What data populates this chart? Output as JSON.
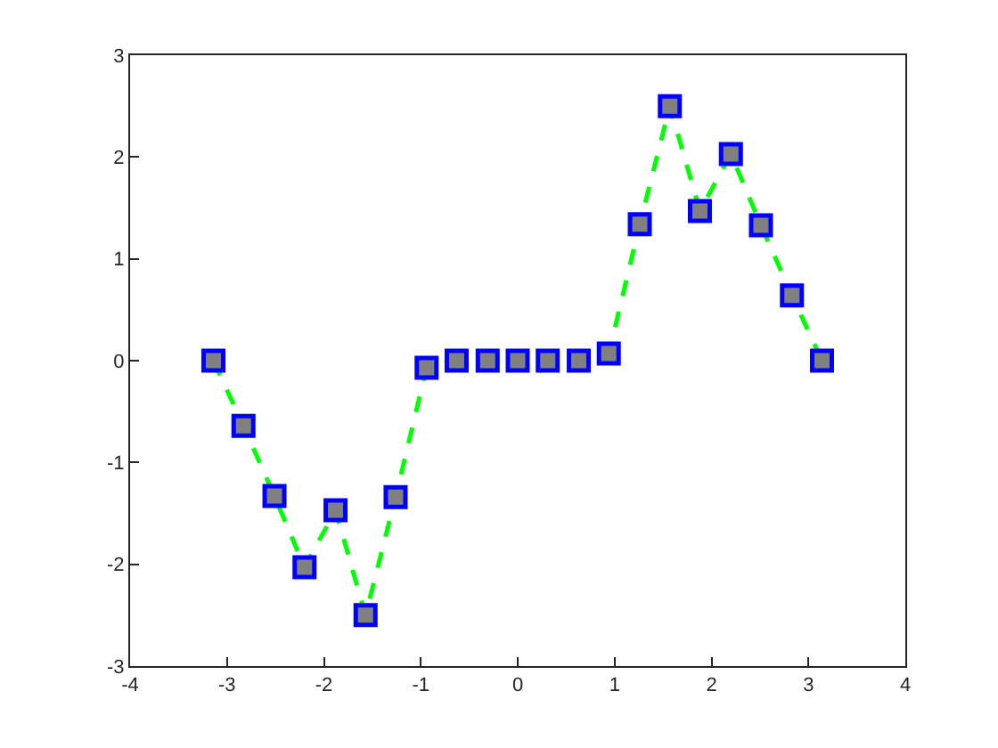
{
  "chart_data": {
    "type": "line",
    "x": [
      -3.14,
      -2.83,
      -2.51,
      -2.2,
      -1.88,
      -1.57,
      -1.26,
      -0.94,
      -0.63,
      -0.31,
      0,
      0.31,
      0.63,
      0.94,
      1.26,
      1.57,
      1.88,
      2.2,
      2.51,
      2.83,
      3.14
    ],
    "series": [
      {
        "color": "#00ff00",
        "values": [
          0,
          -0.64,
          -1.33,
          -2.03,
          -1.47,
          -2.5,
          -1.34,
          -0.07,
          0,
          0,
          0,
          0,
          0,
          0.07,
          1.34,
          2.5,
          1.47,
          2.03,
          1.33,
          0.64,
          0
        ]
      }
    ],
    "xlim": [
      -4,
      4
    ],
    "xticks": [
      -4,
      -3,
      -2,
      -1,
      0,
      1,
      2,
      3,
      4
    ],
    "ylim": [
      -3,
      3
    ],
    "yticks": [
      -3,
      -2,
      -1,
      0,
      1,
      2,
      3
    ],
    "marker": "square",
    "line_style": "dashed"
  }
}
